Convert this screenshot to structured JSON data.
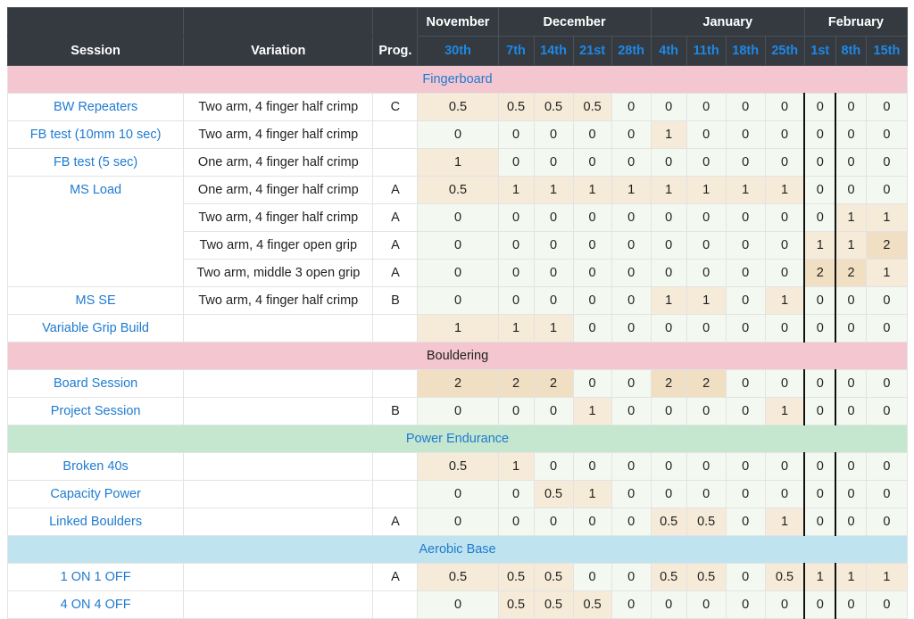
{
  "header": {
    "months": [
      "November",
      "December",
      "January",
      "February"
    ],
    "columns": {
      "session": "Session",
      "variation": "Variation",
      "prog": "Prog."
    },
    "days": [
      "30th",
      "7th",
      "14th",
      "21st",
      "28th",
      "4th",
      "11th",
      "18th",
      "25th",
      "1st",
      "8th",
      "15th"
    ]
  },
  "categories": {
    "fingerboard": "Fingerboard",
    "bouldering": "Bouldering",
    "power_endurance": "Power Endurance",
    "aerobic_base": "Aerobic Base"
  },
  "rows": [
    {
      "session": "BW Repeaters",
      "variation": "Two arm, 4 finger half crimp",
      "prog": "C",
      "values": [
        "0.5",
        "0.5",
        "0.5",
        "0.5",
        "0",
        "0",
        "0",
        "0",
        "0",
        "0",
        "0",
        "0"
      ]
    },
    {
      "session": "FB test (10mm 10 sec)",
      "variation": "Two arm, 4 finger half crimp",
      "prog": "",
      "values": [
        "0",
        "0",
        "0",
        "0",
        "0",
        "1",
        "0",
        "0",
        "0",
        "0",
        "0",
        "0"
      ]
    },
    {
      "session": "FB test (5 sec)",
      "variation": "One arm, 4 finger half crimp",
      "prog": "",
      "values": [
        "1",
        "0",
        "0",
        "0",
        "0",
        "0",
        "0",
        "0",
        "0",
        "0",
        "0",
        "0"
      ]
    },
    {
      "session": "MS Load",
      "variation": "One arm, 4 finger half crimp",
      "prog": "A",
      "values": [
        "0.5",
        "1",
        "1",
        "1",
        "1",
        "1",
        "1",
        "1",
        "1",
        "0",
        "0",
        "0"
      ]
    },
    {
      "session": "",
      "variation": "Two arm, 4 finger half crimp",
      "prog": "A",
      "values": [
        "0",
        "0",
        "0",
        "0",
        "0",
        "0",
        "0",
        "0",
        "0",
        "0",
        "1",
        "1"
      ]
    },
    {
      "session": "",
      "variation": "Two arm, 4 finger open grip",
      "prog": "A",
      "values": [
        "0",
        "0",
        "0",
        "0",
        "0",
        "0",
        "0",
        "0",
        "0",
        "1",
        "1",
        "2"
      ]
    },
    {
      "session": "",
      "variation": "Two arm, middle 3 open grip",
      "prog": "A",
      "values": [
        "0",
        "0",
        "0",
        "0",
        "0",
        "0",
        "0",
        "0",
        "0",
        "2",
        "2",
        "1"
      ]
    },
    {
      "session": "MS SE",
      "variation": "Two arm, 4 finger half crimp",
      "prog": "B",
      "values": [
        "0",
        "0",
        "0",
        "0",
        "0",
        "1",
        "1",
        "0",
        "1",
        "0",
        "0",
        "0"
      ]
    },
    {
      "session": "Variable Grip Build",
      "variation": "",
      "prog": "",
      "values": [
        "1",
        "1",
        "1",
        "0",
        "0",
        "0",
        "0",
        "0",
        "0",
        "0",
        "0",
        "0"
      ]
    },
    {
      "session": "Board Session",
      "variation": "",
      "prog": "",
      "values": [
        "2",
        "2",
        "2",
        "0",
        "0",
        "2",
        "2",
        "0",
        "0",
        "0",
        "0",
        "0"
      ]
    },
    {
      "session": "Project Session",
      "variation": "",
      "prog": "B",
      "values": [
        "0",
        "0",
        "0",
        "1",
        "0",
        "0",
        "0",
        "0",
        "1",
        "0",
        "0",
        "0"
      ]
    },
    {
      "session": "Broken 40s",
      "variation": "",
      "prog": "",
      "values": [
        "0.5",
        "1",
        "0",
        "0",
        "0",
        "0",
        "0",
        "0",
        "0",
        "0",
        "0",
        "0"
      ]
    },
    {
      "session": "Capacity Power",
      "variation": "",
      "prog": "",
      "values": [
        "0",
        "0",
        "0.5",
        "1",
        "0",
        "0",
        "0",
        "0",
        "0",
        "0",
        "0",
        "0"
      ]
    },
    {
      "session": "Linked Boulders",
      "variation": "",
      "prog": "A",
      "values": [
        "0",
        "0",
        "0",
        "0",
        "0",
        "0.5",
        "0.5",
        "0",
        "1",
        "0",
        "0",
        "0"
      ]
    },
    {
      "session": "1 ON 1 OFF",
      "variation": "",
      "prog": "A",
      "values": [
        "0.5",
        "0.5",
        "0.5",
        "0",
        "0",
        "0.5",
        "0.5",
        "0",
        "0.5",
        "1",
        "1",
        "1"
      ]
    },
    {
      "session": "4 ON 4 OFF",
      "variation": "",
      "prog": "",
      "values": [
        "0",
        "0.5",
        "0.5",
        "0.5",
        "0",
        "0",
        "0",
        "0",
        "0",
        "0",
        "0",
        "0"
      ]
    }
  ]
}
